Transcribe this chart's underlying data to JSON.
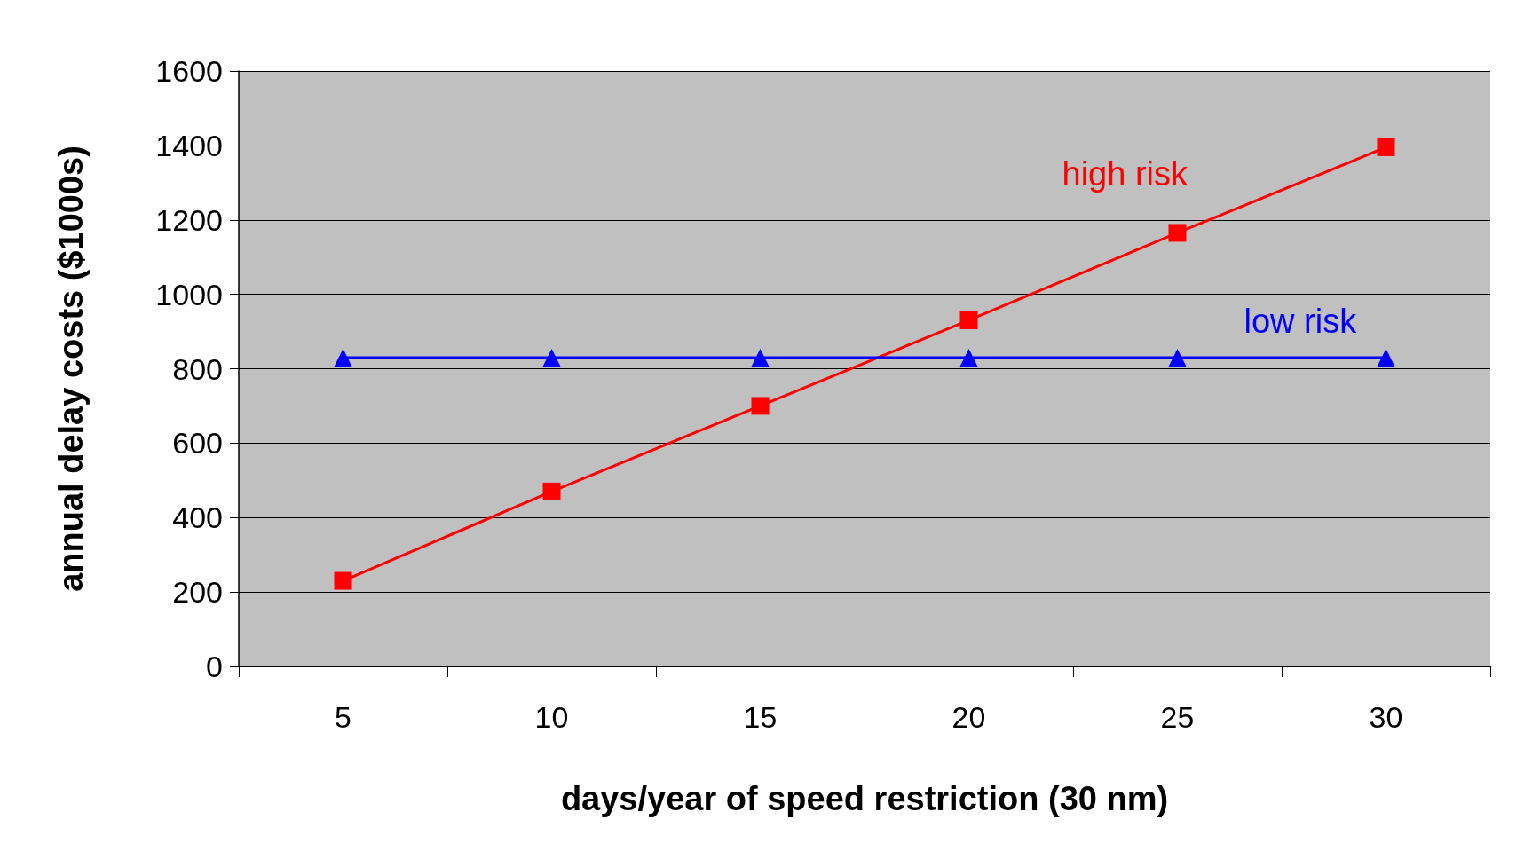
{
  "chart_data": {
    "type": "line",
    "xlabel": "days/year of speed restriction (30 nm)",
    "ylabel": "annual delay costs ($1000s)",
    "categories": [
      "5",
      "10",
      "15",
      "20",
      "25",
      "30"
    ],
    "series": [
      {
        "name": "high risk",
        "color": "#ff0000",
        "marker": "square",
        "values": [
          230,
          470,
          700,
          930,
          1165,
          1395
        ]
      },
      {
        "name": "low risk",
        "color": "#0000ff",
        "marker": "triangle",
        "values": [
          830,
          830,
          830,
          830,
          830,
          830
        ]
      }
    ],
    "ylim": [
      0,
      1600
    ],
    "yticks": [
      0,
      200,
      400,
      600,
      800,
      1000,
      1200,
      1400,
      1600
    ],
    "grid": "y",
    "legend": false
  }
}
